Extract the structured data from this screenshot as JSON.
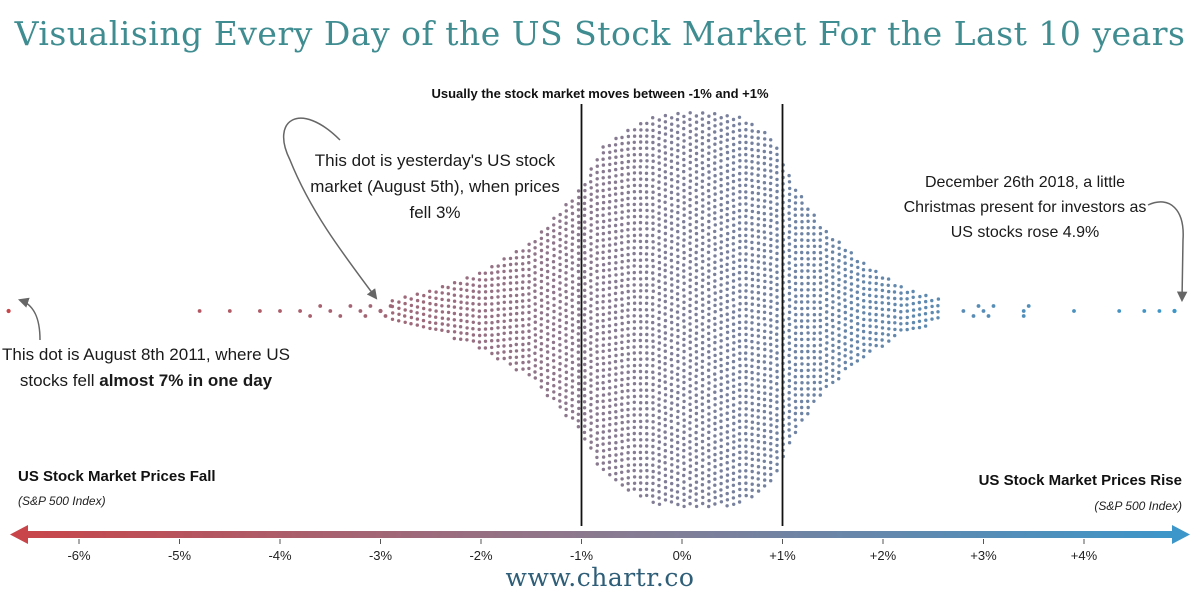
{
  "title": "Visualising Every Day of the US Stock Market For the Last 10 years",
  "band_label": "Usually the stock market moves between -1% and +1%",
  "annotations": {
    "yesterday": "This dot is yesterday's US stock market (August 5th), when prices fell 3%",
    "dec2018": "December 26th 2018, a little Christmas present for investors as US stocks rose 4.9%",
    "aug2011_prefix": "This dot is August 8th 2011, where US stocks fell ",
    "aug2011_bold": "almost 7% in one day"
  },
  "axis": {
    "left_title": "US Stock Market Prices Fall",
    "left_subtitle": "(S&P 500 Index)",
    "right_title": "US Stock Market Prices Rise",
    "right_subtitle": "(S&P 500 Index)"
  },
  "footer": "www.chartr.co",
  "colors": {
    "fall": "#c8454a",
    "middle": "#8a7a90",
    "rise": "#3c96c9",
    "title": "#3f8c91",
    "footer": "#2e5e78"
  },
  "chart_data": {
    "type": "scatter",
    "subtype": "beeswarm",
    "description_unit": "daily % change of S&P 500",
    "xlim": [
      -6.7,
      5.0
    ],
    "tick_values": [
      -6,
      -5,
      -4,
      -3,
      -2,
      -1,
      0,
      1,
      2,
      3,
      4
    ],
    "tick_labels": [
      "-6%",
      "-5%",
      "-4%",
      "-3%",
      "-2%",
      "-1%",
      "0%",
      "+1%",
      "+2%",
      "+3%",
      "+4%"
    ],
    "reference_lines": [
      -1,
      1
    ],
    "highlighted_points": [
      {
        "x": -6.7
      },
      {
        "x": -3.0
      },
      {
        "x": 4.9
      }
    ],
    "outlier_values": [
      -4.8,
      -4.5,
      -4.2,
      -4.0,
      -3.8,
      -3.7,
      -3.6,
      -3.5,
      -3.4,
      -3.3,
      -3.2,
      -3.15,
      -3.1,
      -3.0,
      -2.95,
      -2.9,
      2.8,
      2.9,
      2.95,
      3.0,
      3.05,
      3.1,
      3.4,
      3.4,
      3.45,
      3.9,
      4.35,
      4.6,
      4.75,
      4.9
    ],
    "density_halfheight_profile": [
      [
        -2.9,
        12
      ],
      [
        -2.5,
        22
      ],
      [
        -2.0,
        40
      ],
      [
        -1.5,
        70
      ],
      [
        -1.0,
        125
      ],
      [
        -0.8,
        165
      ],
      [
        -0.5,
        185
      ],
      [
        -0.3,
        195
      ],
      [
        0.0,
        200
      ],
      [
        0.3,
        200
      ],
      [
        0.6,
        195
      ],
      [
        0.9,
        175
      ],
      [
        1.1,
        130
      ],
      [
        1.4,
        85
      ],
      [
        1.8,
        50
      ],
      [
        2.2,
        25
      ],
      [
        2.6,
        12
      ]
    ]
  }
}
